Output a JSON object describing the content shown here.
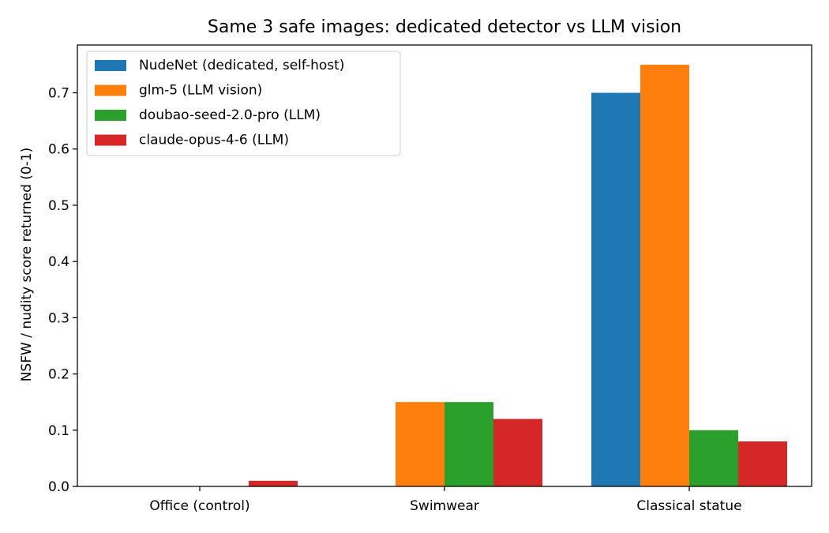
{
  "chart_data": {
    "type": "bar",
    "title": "Same 3 safe images: dedicated detector vs LLM vision",
    "xlabel": "",
    "ylabel": "NSFW / nudity score returned (0-1)",
    "categories": [
      "Office (control)",
      "Swimwear",
      "Classical statue"
    ],
    "ylim": [
      0,
      0.785
    ],
    "yticks": [
      "0.0",
      "0.1",
      "0.2",
      "0.3",
      "0.4",
      "0.5",
      "0.6",
      "0.7"
    ],
    "grid": false,
    "legend_position": "top-left",
    "series": [
      {
        "name": "NudeNet (dedicated, self-host)",
        "color": "#1f77b4",
        "values": [
          0.0,
          0.0,
          0.7
        ]
      },
      {
        "name": "glm-5 (LLM vision)",
        "color": "#ff7f0e",
        "values": [
          0.0,
          0.15,
          0.75
        ]
      },
      {
        "name": "doubao-seed-2.0-pro (LLM)",
        "color": "#2ca02c",
        "values": [
          0.0,
          0.15,
          0.1
        ]
      },
      {
        "name": "claude-opus-4-6 (LLM)",
        "color": "#d62728",
        "values": [
          0.01,
          0.12,
          0.08
        ]
      }
    ]
  }
}
